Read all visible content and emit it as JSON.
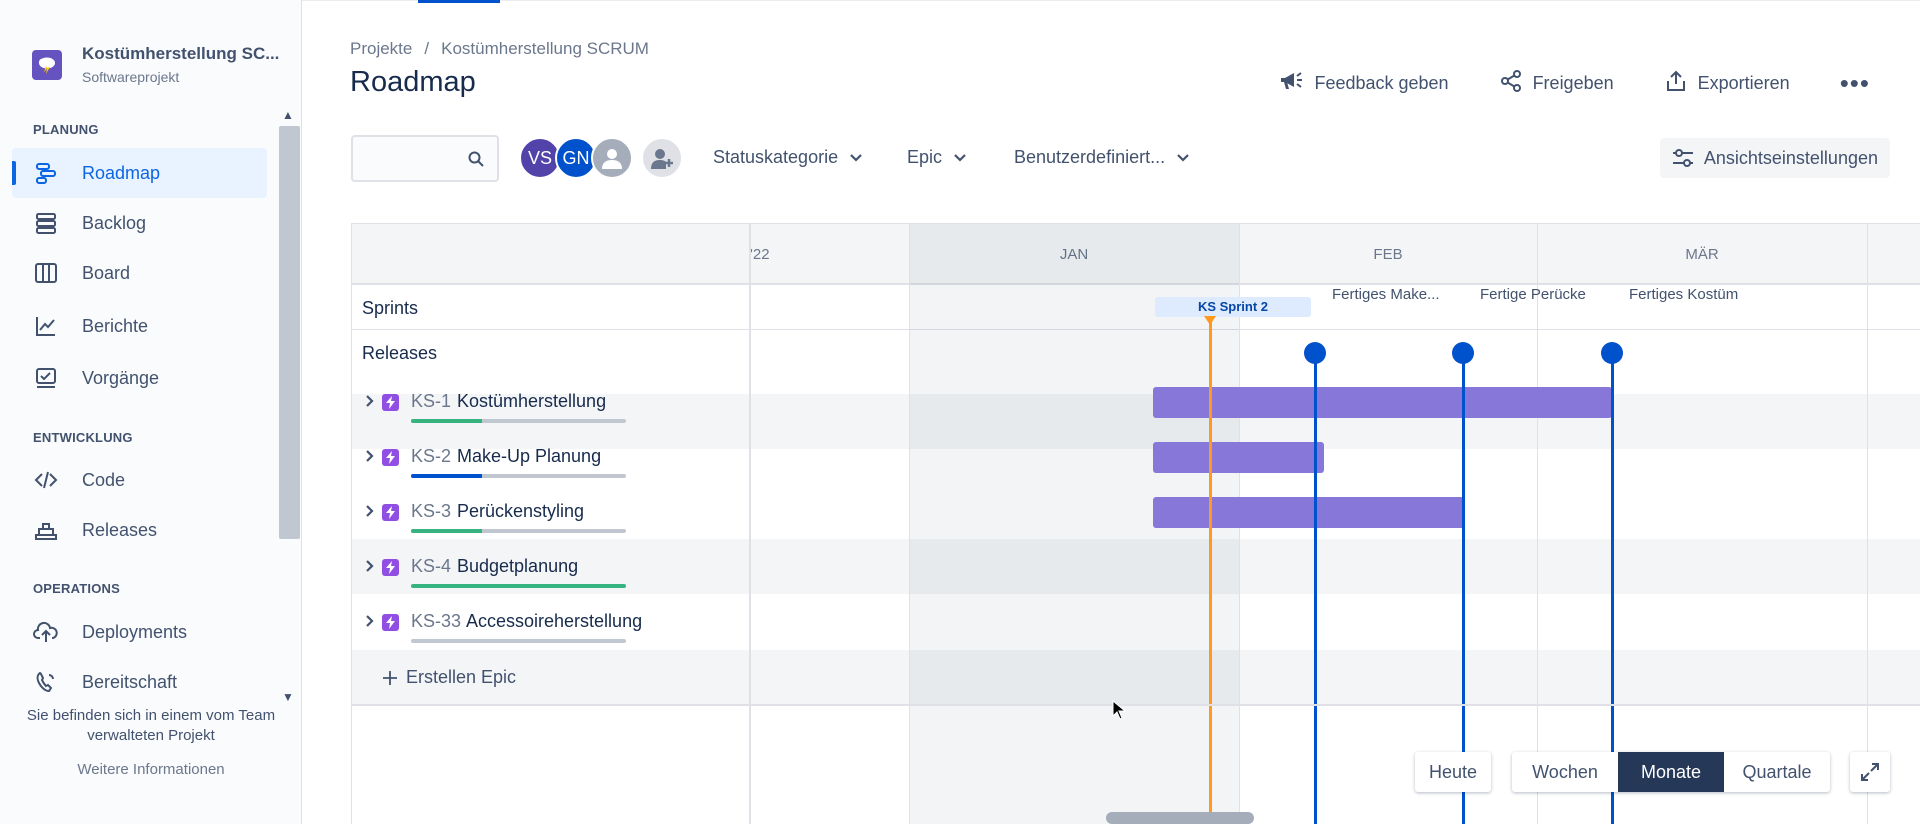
{
  "project": {
    "name": "Kostümherstellung SC...",
    "type": "Softwareprojekt"
  },
  "sidebar": {
    "sections": [
      {
        "title": "PLANUNG"
      },
      {
        "title": "ENTWICKLUNG"
      },
      {
        "title": "OPERATIONS"
      }
    ],
    "items": [
      {
        "label": "Roadmap",
        "icon": "roadmap-icon",
        "active": true
      },
      {
        "label": "Backlog",
        "icon": "backlog-icon"
      },
      {
        "label": "Board",
        "icon": "board-icon"
      },
      {
        "label": "Berichte",
        "icon": "reports-icon"
      },
      {
        "label": "Vorgänge",
        "icon": "issues-icon"
      },
      {
        "label": "Code",
        "icon": "code-icon"
      },
      {
        "label": "Releases",
        "icon": "releases-icon"
      },
      {
        "label": "Deployments",
        "icon": "deployments-icon"
      },
      {
        "label": "Bereitschaft",
        "icon": "on-call-icon"
      }
    ],
    "footer_text": "Sie befinden sich in einem vom Team verwalteten Projekt",
    "footer_link": "Weitere Informationen"
  },
  "breadcrumb": {
    "root": "Projekte",
    "separator": "/",
    "current": "Kostümherstellung SCRUM"
  },
  "page_title": "Roadmap",
  "header_actions": {
    "feedback": "Feedback geben",
    "share": "Freigeben",
    "export": "Exportieren"
  },
  "toolbar": {
    "search_placeholder": "",
    "avatars": [
      "VS",
      "GN"
    ],
    "filters": {
      "status": "Statuskategorie",
      "epic": "Epic",
      "custom": "Benutzerdefiniert..."
    },
    "view_settings": "Ansichtseinstellungen"
  },
  "timeline": {
    "months": [
      "'22",
      "JAN",
      "FEB",
      "MÄR"
    ],
    "sprints_label": "Sprints",
    "releases_label": "Releases",
    "sprint_chip": "KS Sprint 2",
    "releases": [
      "Fertiges Make...",
      "Fertige Perücke",
      "Fertiges Kostüm"
    ]
  },
  "epics": [
    {
      "key": "KS-1",
      "title": "Kostümherstellung",
      "progress_done": 0.33,
      "progress_color": "#36b37e"
    },
    {
      "key": "KS-2",
      "title": "Make-Up Planung",
      "progress_done": 0.33,
      "progress_color": "#0052cc"
    },
    {
      "key": "KS-3",
      "title": "Perückenstyling",
      "progress_done": 0.33,
      "progress_color": "#36b37e"
    },
    {
      "key": "KS-4",
      "title": "Budgetplanung",
      "progress_done": 1.0,
      "progress_color": "#36b37e"
    },
    {
      "key": "KS-33",
      "title": "Accessoireherstellung",
      "progress_done": 0,
      "progress_color": "#36b37e"
    }
  ],
  "create_epic": "Erstellen Epic",
  "zoom": {
    "today": "Heute",
    "weeks": "Wochen",
    "months": "Monate",
    "quarters": "Quartale",
    "selected": "Monate"
  },
  "colors": {
    "accent": "#0052cc",
    "epic_bar": "#8777d9",
    "today": "#ff991f",
    "selected_zoom": "#253858"
  }
}
